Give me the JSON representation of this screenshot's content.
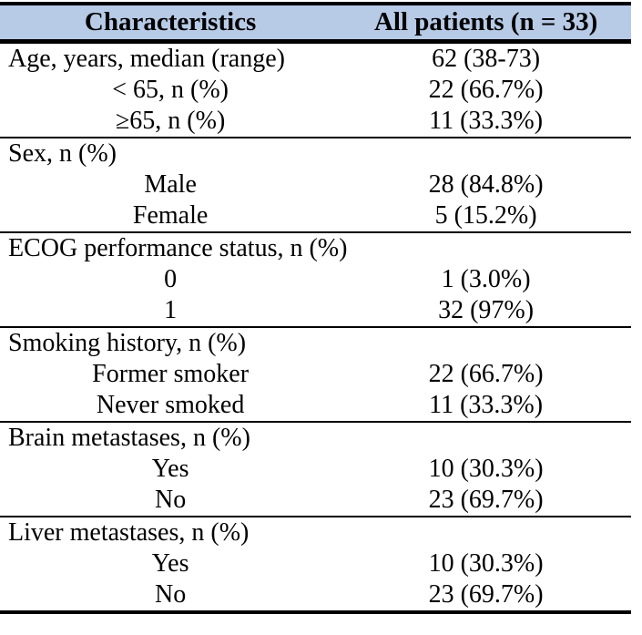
{
  "table": {
    "title": "Patient characteristics table",
    "colors": {
      "header_bg": "#b7cae6",
      "border": "#000000",
      "text": "#000000"
    },
    "header": {
      "col1": "Characteristics",
      "col2": "All patients (n = 33)"
    },
    "sections": [
      {
        "label": "Age, years, median (range)",
        "value": "62 (38-73)",
        "rows": [
          {
            "label": "< 65, n (%)",
            "value": "22 (66.7%)"
          },
          {
            "label": "≥65, n (%)",
            "value": "11 (33.3%)"
          }
        ]
      },
      {
        "label": "Sex, n (%)",
        "value": "",
        "rows": [
          {
            "label": "Male",
            "value": "28 (84.8%)"
          },
          {
            "label": "Female",
            "value": "5 (15.2%)"
          }
        ]
      },
      {
        "label": "ECOG performance status, n (%)",
        "value": "",
        "rows": [
          {
            "label": "0",
            "value": "1 (3.0%)"
          },
          {
            "label": "1",
            "value": "32 (97%)"
          }
        ]
      },
      {
        "label": "Smoking history, n (%)",
        "value": "",
        "rows": [
          {
            "label": "Former smoker",
            "value": "22 (66.7%)"
          },
          {
            "label": "Never smoked",
            "value": "11 (33.3%)"
          }
        ]
      },
      {
        "label": "Brain metastases, n (%)",
        "value": "",
        "rows": [
          {
            "label": "Yes",
            "value": "10 (30.3%)"
          },
          {
            "label": "No",
            "value": "23 (69.7%)"
          }
        ]
      },
      {
        "label": "Liver metastases, n (%)",
        "value": "",
        "rows": [
          {
            "label": "Yes",
            "value": "10 (30.3%)"
          },
          {
            "label": "No",
            "value": "23 (69.7%)"
          }
        ]
      }
    ]
  }
}
